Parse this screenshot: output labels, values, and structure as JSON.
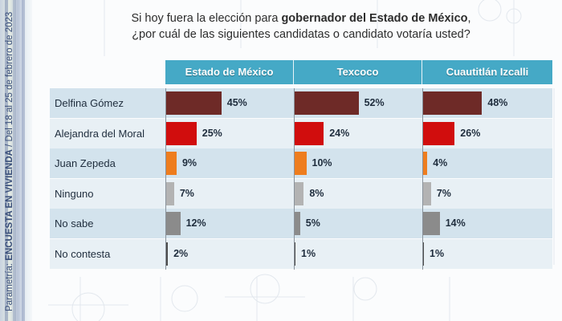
{
  "question": {
    "part1": "Si hoy fuera la elección para ",
    "bold": "gobernador  del Estado de México",
    "part2": ",",
    "line2": "¿por cuál de las siguientes candidatas o candidato votaría usted?"
  },
  "side_caption": {
    "prefix": "Parametría: ",
    "bold": "ENCUESTA EN VIVIENDA",
    "suffix": " / Del 18 al 25 de febrero de 2023"
  },
  "colors": {
    "header": "#45a9c6",
    "Delfina Gómez": "#6e2a27",
    "Alejandra del Moral": "#d10d0d",
    "Juan Zepeda": "#ee7d1e",
    "Ninguno": "#b3b3b3",
    "No sabe": "#8b8b8b",
    "No contesta": "#4d4d4d"
  },
  "chart_data": {
    "type": "bar",
    "orientation": "horizontal",
    "title": "Si hoy fuera la elección para gobernador del Estado de México, ¿por cuál de las siguientes candidatas o candidato votaría usted?",
    "categories": [
      "Delfina Gómez",
      "Alejandra del Moral",
      "Juan Zepeda",
      "Ninguno",
      "No sabe",
      "No contesta"
    ],
    "series": [
      {
        "name": "Estado de México",
        "values": [
          45,
          25,
          9,
          7,
          12,
          2
        ],
        "labels": [
          "45%",
          "25%",
          "9%",
          "7%",
          "12%",
          "2%"
        ]
      },
      {
        "name": "Texcoco",
        "values": [
          52,
          24,
          10,
          8,
          5,
          1
        ],
        "labels": [
          "52%",
          "24%",
          "10%",
          "8%",
          "5%",
          "1%"
        ]
      },
      {
        "name": "Cuautitlán  Izcalli",
        "values": [
          48,
          26,
          4,
          7,
          14,
          1
        ],
        "labels": [
          "48%",
          "26%",
          "4%",
          "7%",
          "14%",
          "1%"
        ]
      }
    ],
    "unit": "%",
    "xlim": [
      0,
      100
    ],
    "grid": false,
    "legend": "none"
  }
}
